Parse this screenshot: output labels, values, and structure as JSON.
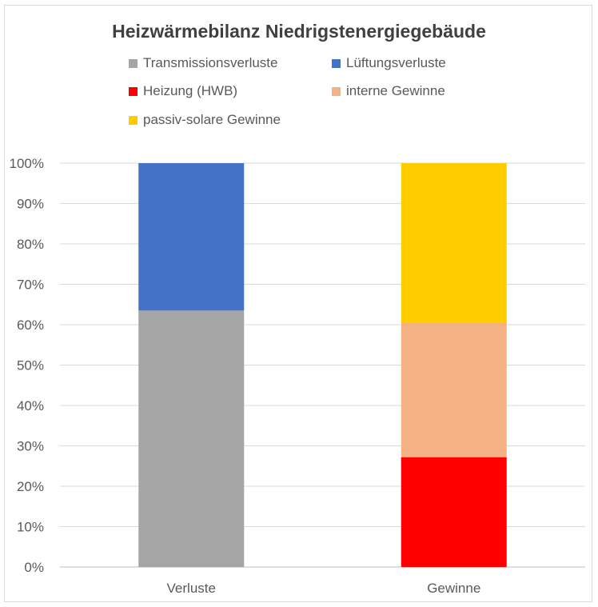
{
  "chart_data": {
    "type": "bar",
    "stacked": true,
    "percent_stacked": true,
    "title": "Heizwärmebilanz Niedrigstenergiegebäude",
    "categories": [
      "Verluste",
      "Gewinne"
    ],
    "series": [
      {
        "name": "Transmissionsverluste",
        "color": "#a5a5a5",
        "values": [
          63.5,
          0
        ]
      },
      {
        "name": "Lüftungsverluste",
        "color": "#4472c4",
        "values": [
          36.5,
          0
        ]
      },
      {
        "name": "Heizung (HWB)",
        "color": "#ff0000",
        "values": [
          0,
          27.2
        ]
      },
      {
        "name": "interne Gewinne",
        "color": "#f4b183",
        "values": [
          0,
          33.3
        ]
      },
      {
        "name": "passiv-solare Gewinne",
        "color": "#ffcc00",
        "values": [
          0,
          39.5
        ]
      }
    ],
    "yticks": [
      "0%",
      "10%",
      "20%",
      "30%",
      "40%",
      "50%",
      "60%",
      "70%",
      "80%",
      "90%",
      "100%"
    ],
    "ylim": [
      0,
      100
    ],
    "grid": true,
    "legend_position": "top"
  }
}
